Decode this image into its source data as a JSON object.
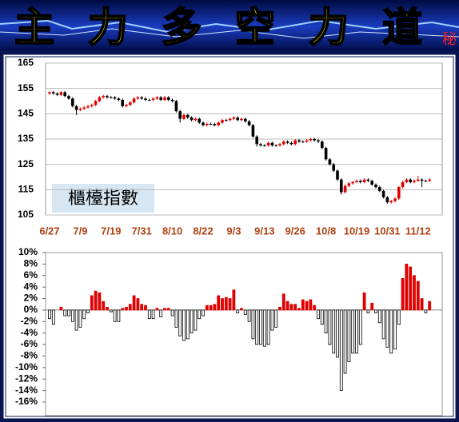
{
  "banner": {
    "title": "主力多空力道",
    "badge": "秘"
  },
  "chart_data": [
    {
      "type": "candlestick",
      "annotation": "櫃檯指數",
      "categories": [
        "6/27",
        null,
        null,
        null,
        null,
        null,
        null,
        null,
        "7/9",
        null,
        null,
        null,
        null,
        null,
        null,
        null,
        "7/19",
        null,
        null,
        null,
        null,
        null,
        null,
        null,
        "7/31",
        null,
        null,
        null,
        null,
        null,
        null,
        null,
        "8/10",
        null,
        null,
        null,
        null,
        null,
        null,
        null,
        "8/22",
        null,
        null,
        null,
        null,
        null,
        null,
        null,
        "9/3",
        null,
        null,
        null,
        null,
        null,
        null,
        null,
        "9/13",
        null,
        null,
        null,
        null,
        null,
        null,
        null,
        "9/26",
        null,
        null,
        null,
        null,
        null,
        null,
        null,
        "10/8",
        null,
        null,
        null,
        null,
        null,
        null,
        null,
        "10/19",
        null,
        null,
        null,
        null,
        null,
        null,
        null,
        "10/31",
        null,
        null,
        null,
        null,
        null,
        null,
        null,
        "11/12",
        null,
        null,
        null
      ],
      "open": [
        153,
        153.5,
        153,
        152.5,
        153.5,
        152,
        151,
        148,
        146.5,
        147,
        147.5,
        148,
        148.5,
        150,
        151.5,
        152,
        151.5,
        151.5,
        151,
        150.5,
        148,
        148.5,
        149.5,
        151,
        151.5,
        151,
        150.5,
        150.5,
        151,
        151.5,
        150.5,
        151.5,
        150.5,
        150,
        146,
        143,
        144.5,
        143.5,
        142.5,
        143,
        141.5,
        140.5,
        141,
        141,
        140.5,
        141.5,
        142.5,
        142.5,
        143,
        143.5,
        142.5,
        143,
        142,
        140.5,
        136,
        133,
        132.5,
        132.5,
        133.5,
        132.5,
        132.5,
        133,
        134,
        133.5,
        133,
        134.5,
        134,
        134,
        134.5,
        135,
        134.5,
        134,
        131.5,
        127,
        125,
        122.5,
        119,
        114,
        116.5,
        117.5,
        118,
        118.5,
        118,
        119,
        118.5,
        117,
        116,
        114.5,
        112,
        110,
        110.5,
        111.5,
        116,
        118,
        119,
        118,
        118.5,
        119,
        118.5,
        118.5
      ],
      "high": [
        154,
        154,
        153.5,
        154,
        154,
        152.5,
        151.5,
        148.5,
        147.5,
        148,
        148.5,
        149,
        150.5,
        152,
        152.5,
        152.5,
        152,
        152,
        151.5,
        151,
        149,
        150,
        151.5,
        152,
        152,
        151.5,
        151,
        151.5,
        152,
        152,
        152,
        152,
        151,
        150.5,
        146.5,
        145,
        145,
        144,
        143.5,
        143.5,
        142,
        141.5,
        141.5,
        141.5,
        142,
        143,
        143,
        143.5,
        144,
        144,
        143.5,
        143.5,
        142.5,
        141,
        136.5,
        133.5,
        133,
        134,
        134,
        133,
        133.5,
        134.5,
        134.5,
        134,
        135,
        135,
        134.5,
        135,
        135.5,
        135.5,
        135,
        134.5,
        132,
        127.5,
        125.5,
        123,
        119.5,
        117,
        118,
        118.5,
        119,
        119,
        119.5,
        119.5,
        119,
        117.5,
        116.5,
        115,
        112.5,
        111,
        112,
        116.5,
        118.5,
        119.5,
        119.5,
        119,
        120.5,
        119.5,
        119,
        119.5
      ],
      "low": [
        152.5,
        152.5,
        152,
        152,
        151.5,
        150.5,
        147.5,
        144.5,
        146,
        146.5,
        147,
        147.5,
        148,
        149.5,
        151,
        151,
        151,
        150.5,
        150,
        147.5,
        147.5,
        148,
        149,
        150.5,
        150.5,
        150,
        150,
        150,
        150.5,
        150,
        150,
        150,
        149.5,
        145.5,
        141.5,
        142.5,
        143,
        142,
        142,
        141,
        140,
        140,
        140.5,
        140,
        140,
        141,
        142,
        142,
        142.5,
        142,
        142,
        141.5,
        140,
        135.5,
        132,
        132,
        132,
        132,
        132,
        132,
        132,
        132.5,
        133,
        132.5,
        132.5,
        133.5,
        133.5,
        133.5,
        134,
        134,
        133.5,
        131,
        126.5,
        124.5,
        122,
        118.5,
        113,
        113.5,
        116,
        117,
        117.5,
        117.5,
        117.5,
        118,
        116.5,
        115.5,
        114,
        111.5,
        109.5,
        109.5,
        110,
        111,
        115.5,
        117.5,
        117.5,
        117.5,
        118,
        116,
        118,
        118
      ],
      "close": [
        153.5,
        153,
        152.5,
        153.5,
        152,
        151,
        148,
        146.5,
        147,
        147.5,
        148,
        148.5,
        150,
        151.5,
        152,
        151.5,
        151.5,
        151,
        150.5,
        148,
        148.5,
        149.5,
        151,
        151.5,
        151,
        150.5,
        150.5,
        151,
        151.5,
        150.5,
        151.5,
        150.5,
        150,
        146,
        143,
        144.5,
        143.5,
        142.5,
        143,
        141.5,
        140.5,
        141,
        141,
        140.5,
        141.5,
        142.5,
        142.5,
        143,
        143.5,
        142.5,
        143,
        142,
        140.5,
        136,
        133,
        132.5,
        132.5,
        133.5,
        132.5,
        132.5,
        133,
        134,
        133.5,
        133,
        134.5,
        134,
        134,
        134.5,
        135,
        134.5,
        134,
        131.5,
        127,
        125,
        122.5,
        119,
        114,
        116.5,
        117.5,
        118,
        118.5,
        118,
        119,
        118.5,
        117,
        116,
        114.5,
        112,
        110,
        110.5,
        111.5,
        116,
        118,
        119,
        118,
        118.5,
        119,
        118.5,
        118.5,
        119
      ],
      "up_color": "#e00000",
      "down_color": "#000000",
      "ylim": [
        105,
        165
      ],
      "yticks": [
        105,
        115,
        125,
        135,
        145,
        155,
        165
      ],
      "grid": true
    },
    {
      "type": "bar",
      "values": [
        -1.5,
        -2.5,
        0,
        0.5,
        -1,
        -1,
        -2,
        -3.5,
        -3,
        -1.5,
        -0.5,
        2.5,
        3.3,
        3,
        1.5,
        0.5,
        -0.3,
        -2,
        -2,
        0.3,
        0.5,
        1,
        2.5,
        2,
        1,
        0.8,
        -1.5,
        -1.5,
        0.3,
        -1.2,
        0.3,
        0.3,
        -1,
        -3,
        -4.5,
        -5.3,
        -5,
        -4,
        -3.5,
        -1.5,
        -1,
        0.8,
        0.8,
        1,
        2.5,
        2,
        2.2,
        2,
        3.5,
        -0.5,
        0.3,
        -0.8,
        -2,
        -5,
        -6,
        -6,
        -6.3,
        -6,
        -3.5,
        -3,
        0.5,
        2.8,
        1.5,
        1,
        1,
        0.3,
        1.8,
        1.5,
        1.8,
        0.8,
        -1.5,
        -2.5,
        -4,
        -6,
        -7.5,
        -8.2,
        -14,
        -11,
        -9,
        -7.5,
        -7.5,
        -6,
        3,
        -0.5,
        1.2,
        -0.5,
        -2.2,
        -5,
        -6.5,
        -7.5,
        -6.8,
        -2.5,
        5.5,
        8,
        7.5,
        6,
        5,
        2,
        -0.5,
        1.5
      ],
      "up_color": "#e00000",
      "down_color": "#ffffff",
      "ylim": [
        -16,
        10
      ],
      "yticks": [
        {
          "value": -16,
          "label": "-16%"
        },
        {
          "value": -14,
          "label": "-14%"
        },
        {
          "value": -12,
          "label": "-12%"
        },
        {
          "value": -10,
          "label": "-10%"
        },
        {
          "value": -8,
          "label": "-8%"
        },
        {
          "value": -6,
          "label": "-6%"
        },
        {
          "value": -4,
          "label": "-4%"
        },
        {
          "value": -2,
          "label": "-2%"
        },
        {
          "value": 0,
          "label": "0%"
        },
        {
          "value": 2,
          "label": "2%"
        },
        {
          "value": 4,
          "label": "4%"
        },
        {
          "value": 6,
          "label": "6%"
        },
        {
          "value": 8,
          "label": "8%"
        },
        {
          "value": 10,
          "label": "10%"
        }
      ]
    }
  ]
}
